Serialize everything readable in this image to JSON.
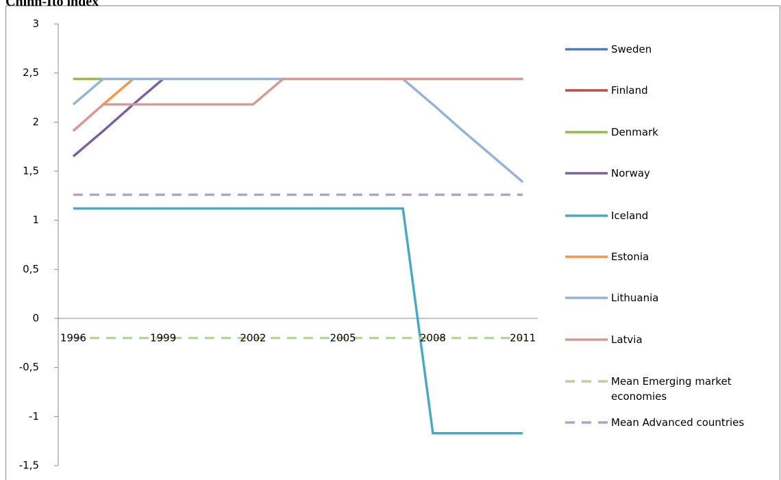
{
  "chart_data": {
    "type": "line",
    "title": "Chinn-Ito index",
    "x": [
      1996,
      1997,
      1998,
      1999,
      2000,
      2001,
      2002,
      2003,
      2004,
      2005,
      2006,
      2007,
      2008,
      2009,
      2010,
      2011
    ],
    "xlim": [
      1995.5,
      2011.5
    ],
    "xticks": [
      1996,
      1999,
      2002,
      2005,
      2008,
      2011
    ],
    "ylim": [
      -1.5,
      3
    ],
    "yticks": [
      {
        "value": -1.5,
        "label": "-1,5"
      },
      {
        "value": -1,
        "label": "-1"
      },
      {
        "value": -0.5,
        "label": "-0,5"
      },
      0,
      {
        "value": 0.5,
        "label": "0,5"
      },
      1,
      {
        "value": 1.5,
        "label": "1,5"
      },
      2,
      {
        "value": 2.5,
        "label": "2,5"
      },
      3
    ],
    "series": [
      {
        "name": "Sweden",
        "color": "#4a7ebb",
        "values": [
          2.44,
          2.44,
          2.44,
          2.44,
          2.44,
          2.44,
          2.44,
          2.44,
          2.44,
          2.44,
          2.44,
          2.44,
          2.44,
          2.44,
          2.44,
          2.44
        ]
      },
      {
        "name": "Finland",
        "color": "#be4b48",
        "values": [
          2.44,
          2.44,
          2.44,
          2.44,
          2.44,
          2.44,
          2.44,
          2.44,
          2.44,
          2.44,
          2.44,
          2.44,
          2.44,
          2.44,
          2.44,
          2.44
        ]
      },
      {
        "name": "Denmark",
        "color": "#98b954",
        "values": [
          2.44,
          2.44,
          2.44,
          2.44,
          2.44,
          2.44,
          2.44,
          2.44,
          2.44,
          2.44,
          2.44,
          2.44,
          2.44,
          2.44,
          2.44,
          2.44
        ]
      },
      {
        "name": "Norway",
        "color": "#7d60a0",
        "values": [
          1.65,
          1.91,
          2.18,
          2.44,
          2.44,
          2.44,
          2.44,
          2.44,
          2.44,
          2.44,
          2.44,
          2.44,
          2.44,
          2.44,
          2.44,
          2.44
        ]
      },
      {
        "name": "Iceland",
        "color": "#46aac5",
        "values": [
          1.12,
          1.12,
          1.12,
          1.12,
          1.12,
          1.12,
          1.12,
          1.12,
          1.12,
          1.12,
          1.12,
          1.12,
          -1.17,
          -1.17,
          -1.17,
          -1.17
        ]
      },
      {
        "name": "Estonia",
        "color": "#f79646",
        "values": [
          1.91,
          2.18,
          2.44,
          2.44,
          2.44,
          2.44,
          2.44,
          2.44,
          2.44,
          2.44,
          2.44,
          2.44,
          2.44,
          2.44,
          2.44,
          2.44
        ]
      },
      {
        "name": "Lithuania",
        "color": "#95b3d7",
        "values": [
          2.18,
          2.44,
          2.44,
          2.44,
          2.44,
          2.44,
          2.44,
          2.44,
          2.44,
          2.44,
          2.44,
          2.44,
          2.18,
          1.91,
          1.65,
          1.39
        ]
      },
      {
        "name": "Latvia",
        "color": "#d99795",
        "values": [
          1.91,
          2.18,
          2.18,
          2.18,
          2.18,
          2.18,
          2.18,
          2.44,
          2.44,
          2.44,
          2.44,
          2.44,
          2.44,
          2.44,
          2.44,
          2.44
        ]
      },
      {
        "name": "Mean Emerging market economies",
        "color": "#b3d69b",
        "dashed": true,
        "values": [
          -0.2,
          -0.2,
          -0.2,
          -0.2,
          -0.2,
          -0.2,
          -0.2,
          -0.2,
          -0.2,
          -0.2,
          -0.2,
          -0.2,
          -0.2,
          -0.2,
          -0.2,
          -0.2
        ]
      },
      {
        "name": "Mean Advanced countries",
        "color": "#b3a2c7",
        "dashed": true,
        "values": [
          1.26,
          1.26,
          1.26,
          1.26,
          1.26,
          1.26,
          1.26,
          1.26,
          1.26,
          1.26,
          1.26,
          1.26,
          1.26,
          1.26,
          1.26,
          1.26
        ]
      }
    ],
    "legend": "right"
  }
}
